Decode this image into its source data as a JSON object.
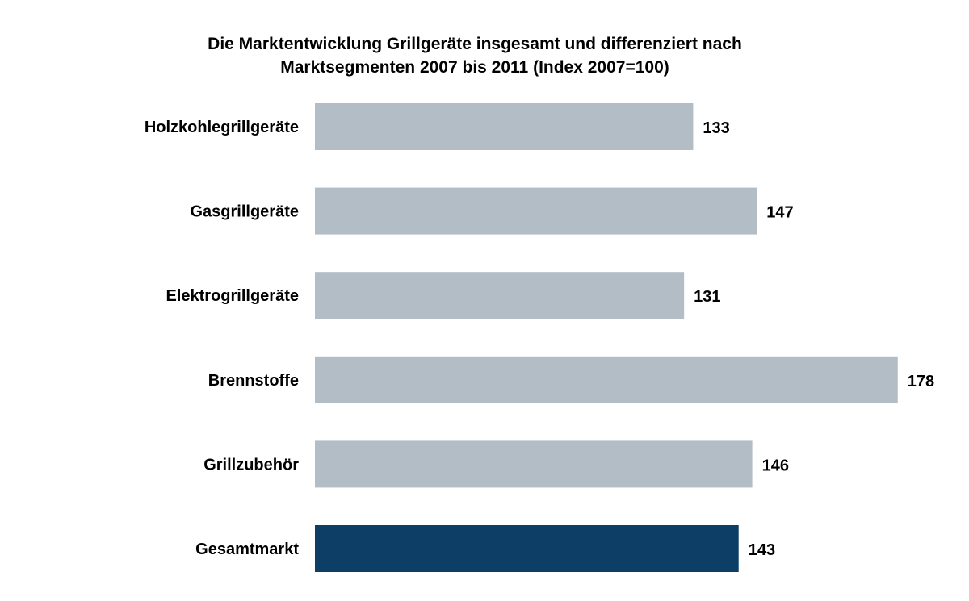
{
  "chart_data": {
    "type": "bar",
    "orientation": "horizontal",
    "title_line1": "Die Marktentwicklung Grillgeräte insgesamt und differenziert nach",
    "title_line2": "Marktsegmenten 2007 bis 2011  (Index 2007=100)",
    "categories": [
      "Holzkohlegrillgeräte",
      "Gasgrillgeräte",
      "Elektrogrillgeräte",
      "Brennstoffe",
      "Grillzubehör",
      "Gesamtmarkt"
    ],
    "values": [
      133,
      147,
      131,
      178,
      146,
      143
    ],
    "colors": [
      "#b3bdc6",
      "#b3bdc6",
      "#b3bdc6",
      "#b3bdc6",
      "#b3bdc6",
      "#0d3f66"
    ],
    "grid": false,
    "legend": "none"
  }
}
